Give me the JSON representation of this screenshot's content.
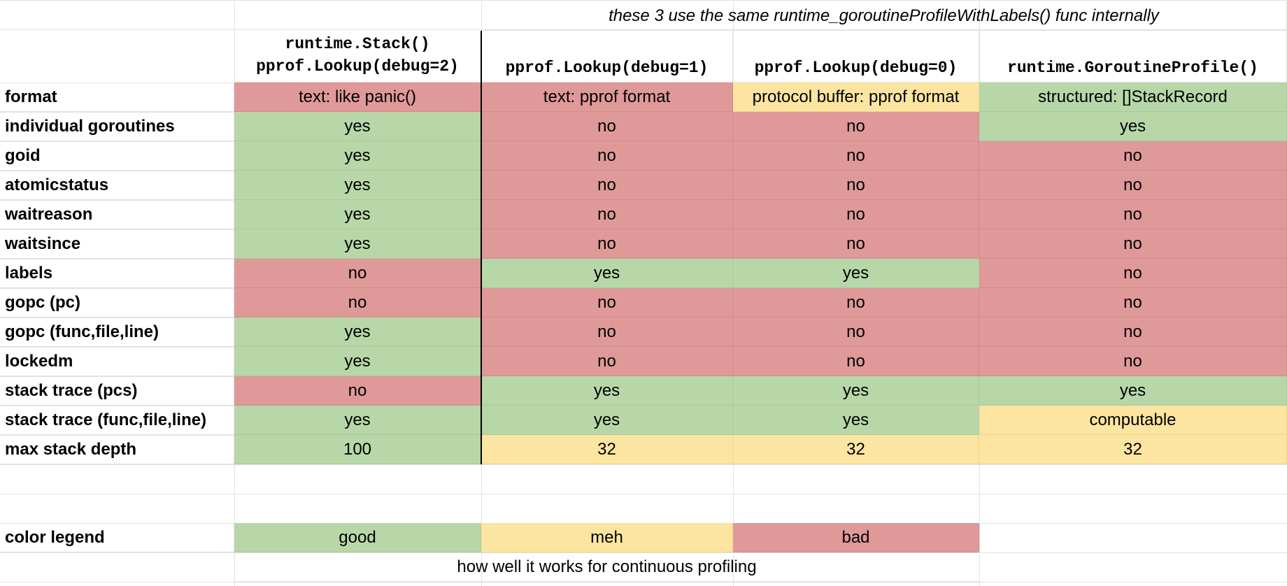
{
  "colors": {
    "good": "#b7d7a8",
    "meh": "#fce5a0",
    "bad": "#df9999",
    "grid": "#e2e2e2"
  },
  "note": "these 3 use the same runtime_goroutineProfileWithLabels() func internally",
  "columns": [
    {
      "line1": "runtime.Stack()",
      "line2": "pprof.Lookup(debug=2)"
    },
    {
      "line1": "",
      "line2": "pprof.Lookup(debug=1)"
    },
    {
      "line1": "",
      "line2": "pprof.Lookup(debug=0)"
    },
    {
      "line1": "",
      "line2": "runtime.GoroutineProfile()"
    }
  ],
  "rows": [
    {
      "label": "format",
      "cells": [
        {
          "text": "text: like panic()",
          "rating": "bad"
        },
        {
          "text": "text: pprof format",
          "rating": "bad"
        },
        {
          "text": "protocol buffer: pprof format",
          "rating": "meh"
        },
        {
          "text": "structured: []StackRecord",
          "rating": "good"
        }
      ]
    },
    {
      "label": "individual goroutines",
      "cells": [
        {
          "text": "yes",
          "rating": "good"
        },
        {
          "text": "no",
          "rating": "bad"
        },
        {
          "text": "no",
          "rating": "bad"
        },
        {
          "text": "yes",
          "rating": "good"
        }
      ]
    },
    {
      "label": "goid",
      "cells": [
        {
          "text": "yes",
          "rating": "good"
        },
        {
          "text": "no",
          "rating": "bad"
        },
        {
          "text": "no",
          "rating": "bad"
        },
        {
          "text": "no",
          "rating": "bad"
        }
      ]
    },
    {
      "label": "atomicstatus",
      "cells": [
        {
          "text": "yes",
          "rating": "good"
        },
        {
          "text": "no",
          "rating": "bad"
        },
        {
          "text": "no",
          "rating": "bad"
        },
        {
          "text": "no",
          "rating": "bad"
        }
      ]
    },
    {
      "label": "waitreason",
      "cells": [
        {
          "text": "yes",
          "rating": "good"
        },
        {
          "text": "no",
          "rating": "bad"
        },
        {
          "text": "no",
          "rating": "bad"
        },
        {
          "text": "no",
          "rating": "bad"
        }
      ]
    },
    {
      "label": "waitsince",
      "cells": [
        {
          "text": "yes",
          "rating": "good"
        },
        {
          "text": "no",
          "rating": "bad"
        },
        {
          "text": "no",
          "rating": "bad"
        },
        {
          "text": "no",
          "rating": "bad"
        }
      ]
    },
    {
      "label": "labels",
      "cells": [
        {
          "text": "no",
          "rating": "bad"
        },
        {
          "text": "yes",
          "rating": "good"
        },
        {
          "text": "yes",
          "rating": "good"
        },
        {
          "text": "no",
          "rating": "bad"
        }
      ]
    },
    {
      "label": "gopc (pc)",
      "cells": [
        {
          "text": "no",
          "rating": "bad"
        },
        {
          "text": "no",
          "rating": "bad"
        },
        {
          "text": "no",
          "rating": "bad"
        },
        {
          "text": "no",
          "rating": "bad"
        }
      ]
    },
    {
      "label": "gopc (func,file,line)",
      "cells": [
        {
          "text": "yes",
          "rating": "good"
        },
        {
          "text": "no",
          "rating": "bad"
        },
        {
          "text": "no",
          "rating": "bad"
        },
        {
          "text": "no",
          "rating": "bad"
        }
      ]
    },
    {
      "label": "lockedm",
      "cells": [
        {
          "text": "yes",
          "rating": "good"
        },
        {
          "text": "no",
          "rating": "bad"
        },
        {
          "text": "no",
          "rating": "bad"
        },
        {
          "text": "no",
          "rating": "bad"
        }
      ]
    },
    {
      "label": "stack trace (pcs)",
      "cells": [
        {
          "text": "no",
          "rating": "bad"
        },
        {
          "text": "yes",
          "rating": "good"
        },
        {
          "text": "yes",
          "rating": "good"
        },
        {
          "text": "yes",
          "rating": "good"
        }
      ]
    },
    {
      "label": "stack trace (func,file,line)",
      "cells": [
        {
          "text": "yes",
          "rating": "good"
        },
        {
          "text": "yes",
          "rating": "good"
        },
        {
          "text": "yes",
          "rating": "good"
        },
        {
          "text": "computable",
          "rating": "meh"
        }
      ]
    },
    {
      "label": "max stack depth",
      "cells": [
        {
          "text": "100",
          "rating": "good"
        },
        {
          "text": "32",
          "rating": "meh"
        },
        {
          "text": "32",
          "rating": "meh"
        },
        {
          "text": "32",
          "rating": "meh"
        }
      ]
    }
  ],
  "legend": {
    "label": "color legend",
    "items": [
      {
        "text": "good",
        "rating": "good"
      },
      {
        "text": "meh",
        "rating": "meh"
      },
      {
        "text": "bad",
        "rating": "bad"
      }
    ],
    "caption": "how well it works for continuous profiling"
  }
}
